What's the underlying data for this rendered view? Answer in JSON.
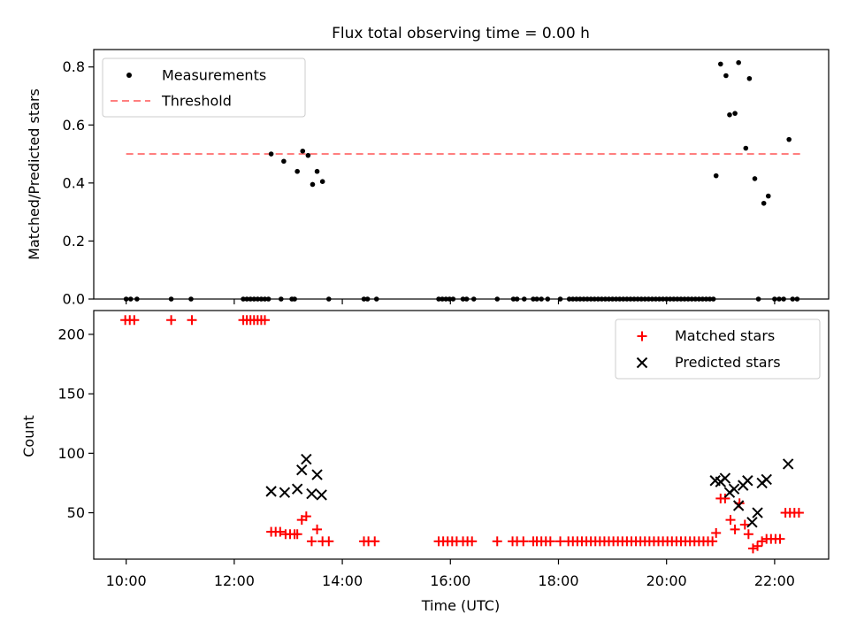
{
  "title": "Flux total observing time = 0.00 h",
  "xlabel": "Time (UTC)",
  "colors": {
    "matched": "#ff0000",
    "predicted": "#000000",
    "measurement": "#000000",
    "threshold": "#ff7f7f"
  },
  "chart_data": [
    {
      "type": "scatter",
      "title": "Flux total observing time = 0.00 h",
      "ylabel": "Matched/Predicted stars",
      "xlim": [
        "09:24",
        "23:00"
      ],
      "ylim": [
        0,
        0.86
      ],
      "yticks": [
        "0.0",
        "0.2",
        "0.4",
        "0.6",
        "0.8"
      ],
      "legend_position": "upper left",
      "threshold": {
        "name": "Threshold",
        "value": 0.5,
        "x_start": "10:00",
        "x_end": "22:30"
      },
      "series": [
        {
          "name": "Measurements",
          "points": [
            [
              "10:00",
              0
            ],
            [
              "10:05",
              0
            ],
            [
              "10:12",
              0
            ],
            [
              "10:50",
              0
            ],
            [
              "11:12",
              0
            ],
            [
              "12:10",
              0
            ],
            [
              "12:14",
              0
            ],
            [
              "12:18",
              0
            ],
            [
              "12:22",
              0
            ],
            [
              "12:26",
              0
            ],
            [
              "12:30",
              0
            ],
            [
              "12:34",
              0
            ],
            [
              "12:38",
              0
            ],
            [
              "12:41",
              0.5
            ],
            [
              "12:52",
              0
            ],
            [
              "12:55",
              0.475
            ],
            [
              "13:04",
              0
            ],
            [
              "13:07",
              0
            ],
            [
              "13:10",
              0.44
            ],
            [
              "13:16",
              0.51
            ],
            [
              "13:22",
              0.495
            ],
            [
              "13:27",
              0.395
            ],
            [
              "13:32",
              0.44
            ],
            [
              "13:38",
              0.405
            ],
            [
              "13:45",
              0
            ],
            [
              "14:24",
              0
            ],
            [
              "14:28",
              0
            ],
            [
              "14:38",
              0
            ],
            [
              "15:47",
              0
            ],
            [
              "15:51",
              0
            ],
            [
              "15:55",
              0
            ],
            [
              "15:59",
              0
            ],
            [
              "16:03",
              0
            ],
            [
              "16:14",
              0
            ],
            [
              "16:18",
              0
            ],
            [
              "16:26",
              0
            ],
            [
              "16:52",
              0
            ],
            [
              "17:10",
              0
            ],
            [
              "17:14",
              0
            ],
            [
              "17:22",
              0
            ],
            [
              "17:32",
              0
            ],
            [
              "17:36",
              0
            ],
            [
              "17:41",
              0
            ],
            [
              "17:48",
              0
            ],
            [
              "18:02",
              0
            ],
            [
              "18:12",
              0
            ],
            [
              "18:16",
              0
            ],
            [
              "18:20",
              0
            ],
            [
              "18:24",
              0
            ],
            [
              "18:28",
              0
            ],
            [
              "18:32",
              0
            ],
            [
              "18:36",
              0
            ],
            [
              "18:40",
              0
            ],
            [
              "18:44",
              0
            ],
            [
              "18:48",
              0
            ],
            [
              "18:52",
              0
            ],
            [
              "18:56",
              0
            ],
            [
              "19:00",
              0
            ],
            [
              "19:04",
              0
            ],
            [
              "19:08",
              0
            ],
            [
              "19:12",
              0
            ],
            [
              "19:16",
              0
            ],
            [
              "19:20",
              0
            ],
            [
              "19:24",
              0
            ],
            [
              "19:28",
              0
            ],
            [
              "19:32",
              0
            ],
            [
              "19:36",
              0
            ],
            [
              "19:40",
              0
            ],
            [
              "19:44",
              0
            ],
            [
              "19:48",
              0
            ],
            [
              "19:52",
              0
            ],
            [
              "19:56",
              0
            ],
            [
              "20:00",
              0
            ],
            [
              "20:04",
              0
            ],
            [
              "20:08",
              0
            ],
            [
              "20:12",
              0
            ],
            [
              "20:16",
              0
            ],
            [
              "20:20",
              0
            ],
            [
              "20:24",
              0
            ],
            [
              "20:28",
              0
            ],
            [
              "20:32",
              0
            ],
            [
              "20:36",
              0
            ],
            [
              "20:40",
              0
            ],
            [
              "20:44",
              0
            ],
            [
              "20:48",
              0
            ],
            [
              "20:52",
              0
            ],
            [
              "20:55",
              0.425
            ],
            [
              "21:00",
              0.81
            ],
            [
              "21:06",
              0.77
            ],
            [
              "21:10",
              0.635
            ],
            [
              "21:16",
              0.64
            ],
            [
              "21:20",
              0.815
            ],
            [
              "21:28",
              0.52
            ],
            [
              "21:32",
              0.76
            ],
            [
              "21:38",
              0.415
            ],
            [
              "21:42",
              0
            ],
            [
              "21:48",
              0.33
            ],
            [
              "21:53",
              0.355
            ],
            [
              "22:00",
              0
            ],
            [
              "22:05",
              0
            ],
            [
              "22:10",
              0
            ],
            [
              "22:16",
              0.55
            ],
            [
              "22:20",
              0
            ],
            [
              "22:25",
              0
            ]
          ]
        }
      ]
    },
    {
      "type": "scatter",
      "ylabel": "Count",
      "xlabel": "Time (UTC)",
      "xlim": [
        "09:24",
        "23:00"
      ],
      "ylim": [
        11,
        220
      ],
      "yticks": [
        "50",
        "100",
        "150",
        "200"
      ],
      "xticks": [
        "10:00",
        "12:00",
        "14:00",
        "16:00",
        "18:00",
        "20:00",
        "22:00"
      ],
      "legend_position": "upper right",
      "series": [
        {
          "name": "Matched stars",
          "marker": "+",
          "points": [
            [
              "09:59",
              212
            ],
            [
              "10:04",
              212
            ],
            [
              "10:09",
              212
            ],
            [
              "10:50",
              212
            ],
            [
              "11:13",
              212
            ],
            [
              "12:10",
              212
            ],
            [
              "12:14",
              212
            ],
            [
              "12:18",
              212
            ],
            [
              "12:22",
              212
            ],
            [
              "12:26",
              212
            ],
            [
              "12:30",
              212
            ],
            [
              "12:34",
              212
            ],
            [
              "12:41",
              34
            ],
            [
              "12:46",
              34
            ],
            [
              "12:51",
              34
            ],
            [
              "12:57",
              32
            ],
            [
              "13:02",
              32
            ],
            [
              "13:07",
              32
            ],
            [
              "13:10",
              32
            ],
            [
              "13:15",
              44
            ],
            [
              "13:20",
              47
            ],
            [
              "13:26",
              26
            ],
            [
              "13:32",
              36
            ],
            [
              "13:38",
              26
            ],
            [
              "13:45",
              26
            ],
            [
              "14:24",
              26
            ],
            [
              "14:29",
              26
            ],
            [
              "14:36",
              26
            ],
            [
              "15:47",
              26
            ],
            [
              "15:52",
              26
            ],
            [
              "15:57",
              26
            ],
            [
              "16:02",
              26
            ],
            [
              "16:07",
              26
            ],
            [
              "16:14",
              26
            ],
            [
              "16:19",
              26
            ],
            [
              "16:24",
              26
            ],
            [
              "16:52",
              26
            ],
            [
              "17:09",
              26
            ],
            [
              "17:14",
              26
            ],
            [
              "17:21",
              26
            ],
            [
              "17:32",
              26
            ],
            [
              "17:36",
              26
            ],
            [
              "17:41",
              26
            ],
            [
              "17:46",
              26
            ],
            [
              "17:51",
              26
            ],
            [
              "18:02",
              26
            ],
            [
              "18:11",
              26
            ],
            [
              "18:16",
              26
            ],
            [
              "18:21",
              26
            ],
            [
              "18:26",
              26
            ],
            [
              "18:31",
              26
            ],
            [
              "18:36",
              26
            ],
            [
              "18:41",
              26
            ],
            [
              "18:46",
              26
            ],
            [
              "18:51",
              26
            ],
            [
              "18:56",
              26
            ],
            [
              "19:01",
              26
            ],
            [
              "19:06",
              26
            ],
            [
              "19:11",
              26
            ],
            [
              "19:16",
              26
            ],
            [
              "19:21",
              26
            ],
            [
              "19:26",
              26
            ],
            [
              "19:31",
              26
            ],
            [
              "19:36",
              26
            ],
            [
              "19:41",
              26
            ],
            [
              "19:46",
              26
            ],
            [
              "19:51",
              26
            ],
            [
              "19:56",
              26
            ],
            [
              "20:01",
              26
            ],
            [
              "20:06",
              26
            ],
            [
              "20:11",
              26
            ],
            [
              "20:16",
              26
            ],
            [
              "20:21",
              26
            ],
            [
              "20:26",
              26
            ],
            [
              "20:31",
              26
            ],
            [
              "20:36",
              26
            ],
            [
              "20:41",
              26
            ],
            [
              "20:46",
              26
            ],
            [
              "20:51",
              26
            ],
            [
              "20:55",
              33
            ],
            [
              "21:00",
              62
            ],
            [
              "21:05",
              62
            ],
            [
              "21:11",
              44
            ],
            [
              "21:16",
              36
            ],
            [
              "21:21",
              58
            ],
            [
              "21:27",
              40
            ],
            [
              "21:31",
              32
            ],
            [
              "21:36",
              20
            ],
            [
              "21:41",
              22
            ],
            [
              "21:46",
              26
            ],
            [
              "21:51",
              28
            ],
            [
              "21:56",
              28
            ],
            [
              "22:01",
              28
            ],
            [
              "22:06",
              28
            ],
            [
              "22:12",
              50
            ],
            [
              "22:17",
              50
            ],
            [
              "22:22",
              50
            ],
            [
              "22:27",
              50
            ]
          ]
        },
        {
          "name": "Predicted stars",
          "marker": "x",
          "points": [
            [
              "12:41",
              68
            ],
            [
              "12:56",
              67
            ],
            [
              "13:10",
              70
            ],
            [
              "13:15",
              86
            ],
            [
              "13:20",
              95
            ],
            [
              "13:26",
              66
            ],
            [
              "13:32",
              82
            ],
            [
              "13:37",
              65
            ],
            [
              "20:54",
              77
            ],
            [
              "21:00",
              76
            ],
            [
              "21:05",
              79
            ],
            [
              "21:10",
              67
            ],
            [
              "21:15",
              70
            ],
            [
              "21:20",
              56
            ],
            [
              "21:25",
              73
            ],
            [
              "21:30",
              77
            ],
            [
              "21:35",
              42
            ],
            [
              "21:41",
              50
            ],
            [
              "21:46",
              75
            ],
            [
              "21:51",
              78
            ],
            [
              "22:15",
              91
            ]
          ]
        }
      ]
    }
  ]
}
